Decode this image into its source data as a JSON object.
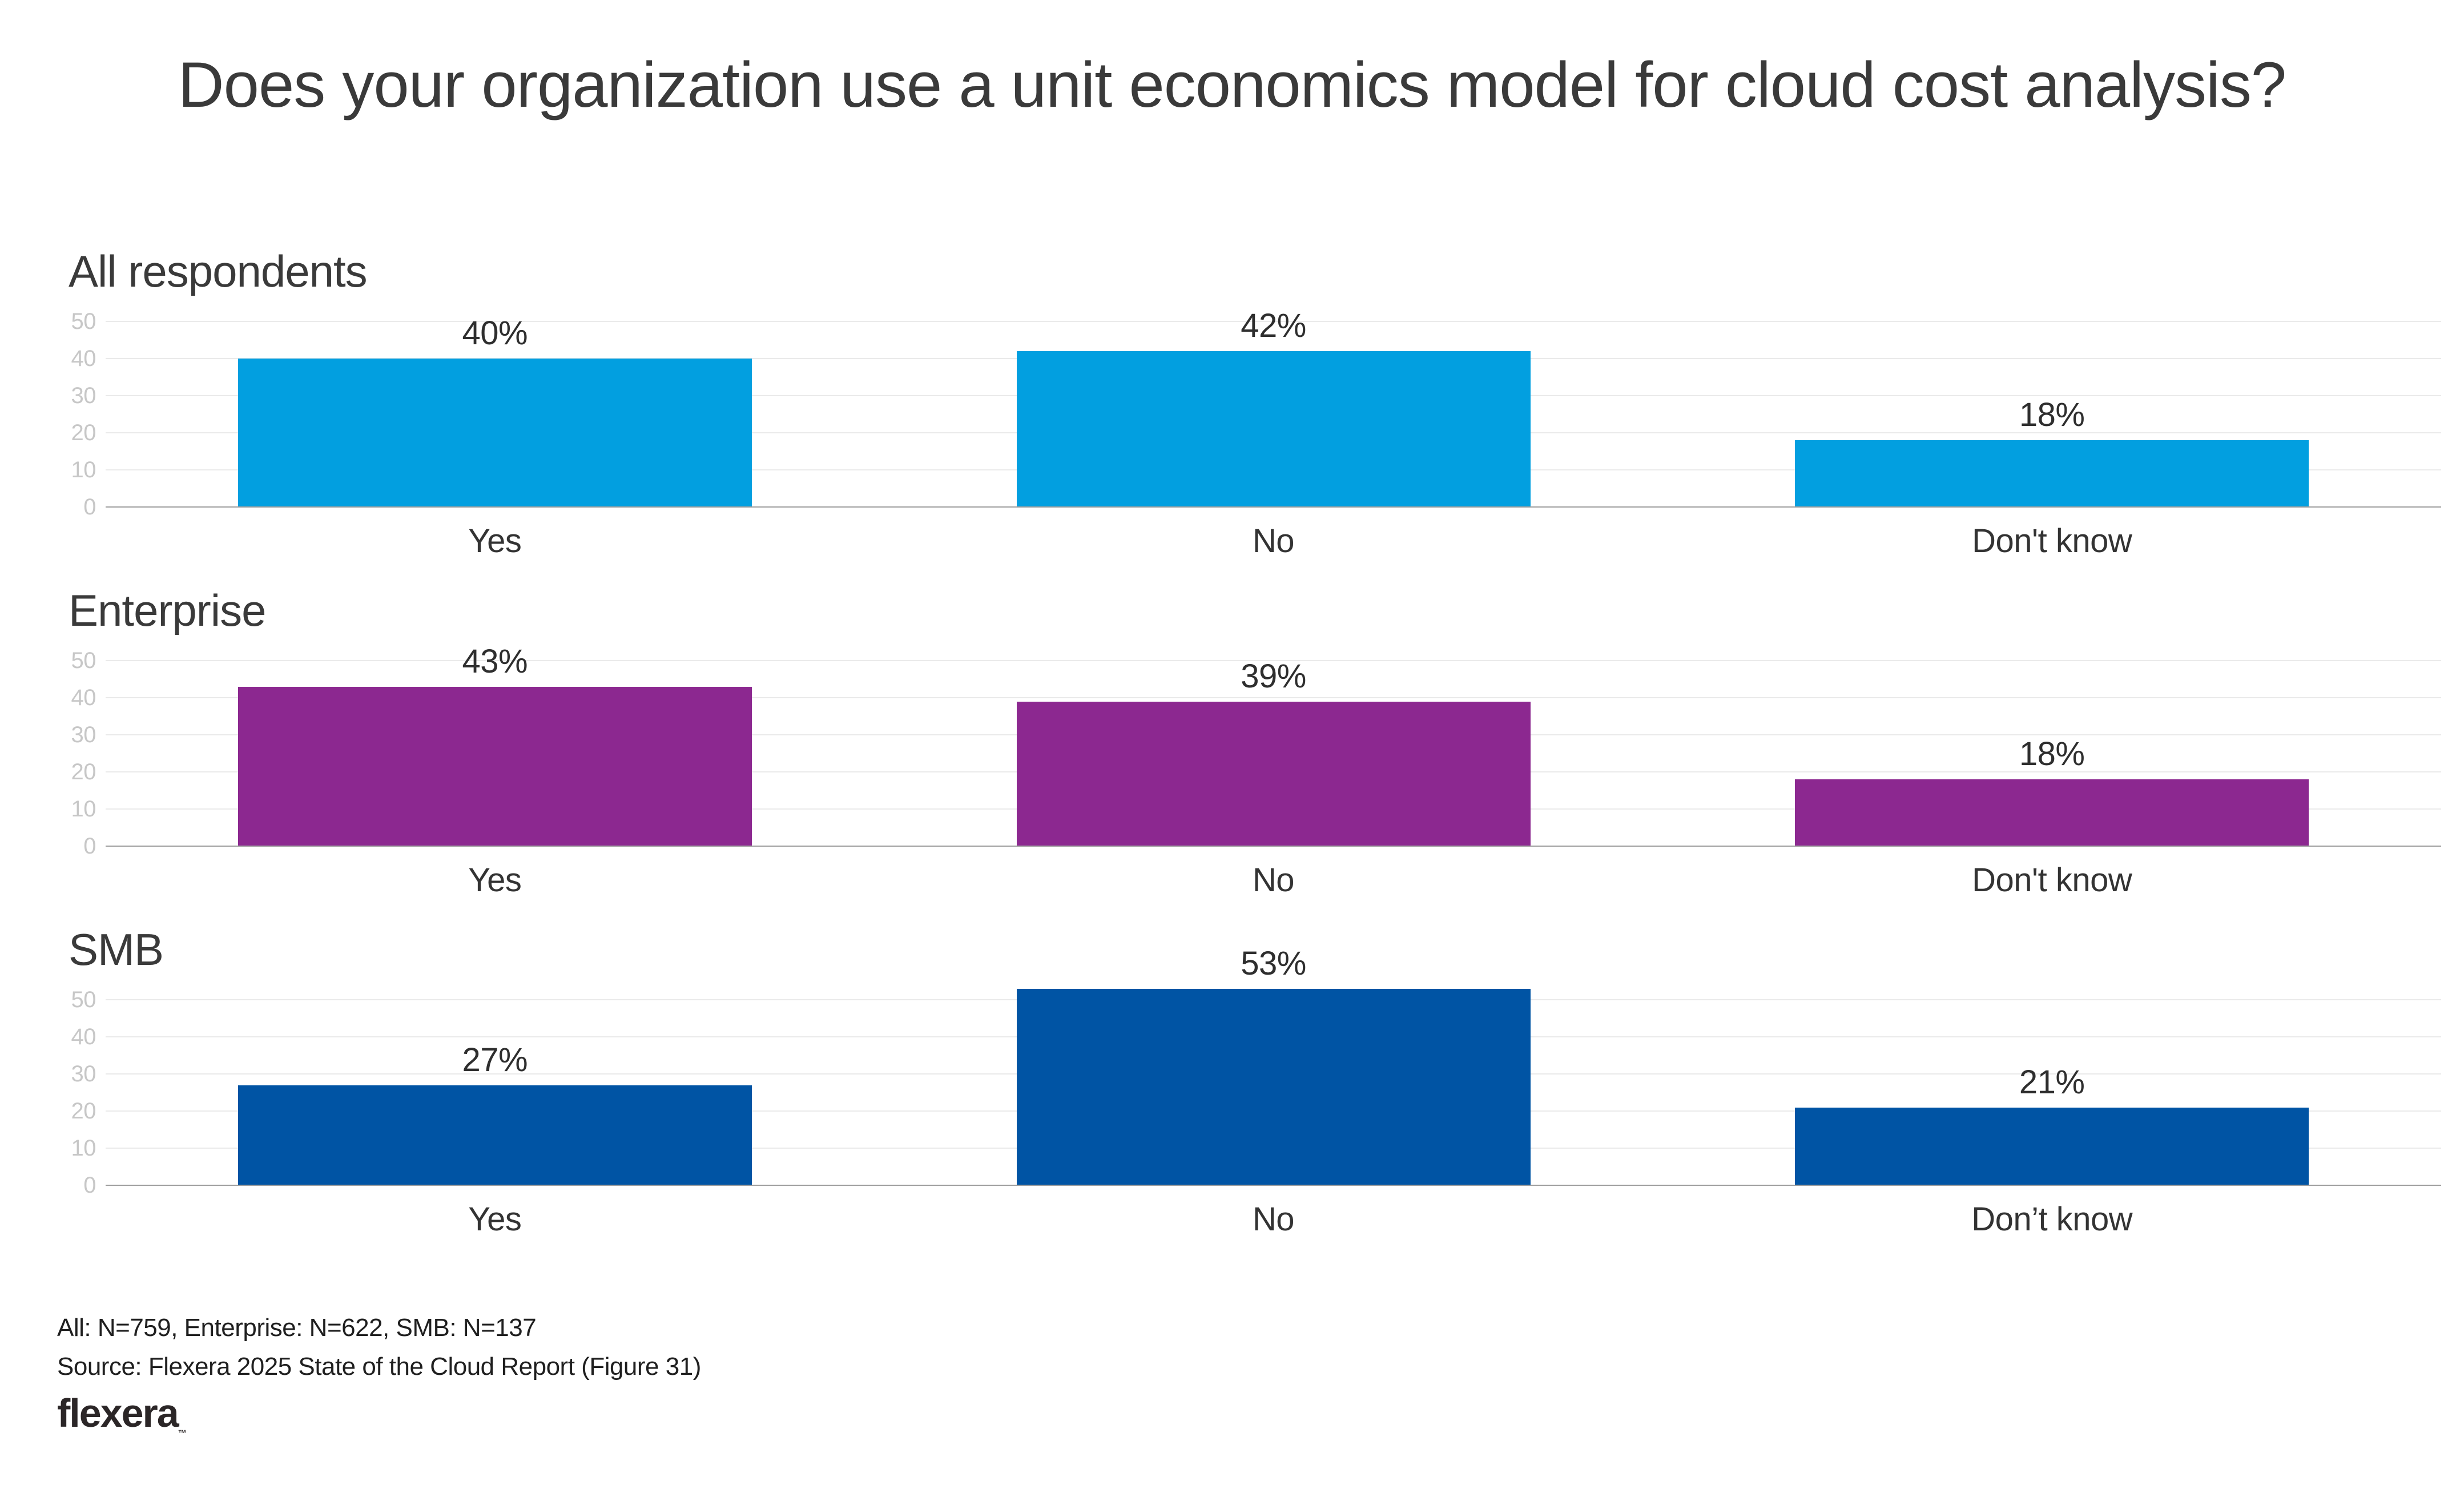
{
  "title": "Does your organization use a unit economics model for cloud cost analysis?",
  "footer": {
    "sample_note": "All: N=759, Enterprise: N=622, SMB: N=137",
    "source_note": "Source: Flexera 2025 State of the Cloud Report (Figure 31)",
    "logo_text": "flexera",
    "logo_trademark": "™"
  },
  "colors": {
    "all_respondents_bar": "#029FE0",
    "enterprise_bar": "#8C2890",
    "smb_bar": "#0054A4",
    "gridline": "#eaeaea",
    "axis_baseline": "#9f9f9f",
    "tick_text": "#c7c7c7",
    "text": "#3a3a3a"
  },
  "chart_data": [
    {
      "type": "bar",
      "title": "All respondents",
      "categories": [
        "Yes",
        "No",
        "Don't know"
      ],
      "values": [
        40,
        42,
        18
      ],
      "value_labels": [
        "40%",
        "42%",
        "18%"
      ],
      "bar_color": "#029FE0",
      "ylim": [
        0,
        50
      ],
      "yticks": [
        0,
        10,
        20,
        30,
        40,
        50
      ],
      "grid": true,
      "legend": "none"
    },
    {
      "type": "bar",
      "title": "Enterprise",
      "categories": [
        "Yes",
        "No",
        "Don't know"
      ],
      "values": [
        43,
        39,
        18
      ],
      "value_labels": [
        "43%",
        "39%",
        "18%"
      ],
      "bar_color": "#8C2890",
      "ylim": [
        0,
        50
      ],
      "yticks": [
        0,
        10,
        20,
        30,
        40,
        50
      ],
      "grid": true,
      "legend": "none"
    },
    {
      "type": "bar",
      "title": "SMB",
      "categories": [
        "Yes",
        "No",
        "Don’t know"
      ],
      "values": [
        27,
        53,
        21
      ],
      "value_labels": [
        "27%",
        "53%",
        "21%"
      ],
      "bar_color": "#0054A4",
      "ylim": [
        0,
        50
      ],
      "yticks": [
        0,
        10,
        20,
        30,
        40,
        50
      ],
      "grid": true,
      "legend": "none"
    }
  ]
}
